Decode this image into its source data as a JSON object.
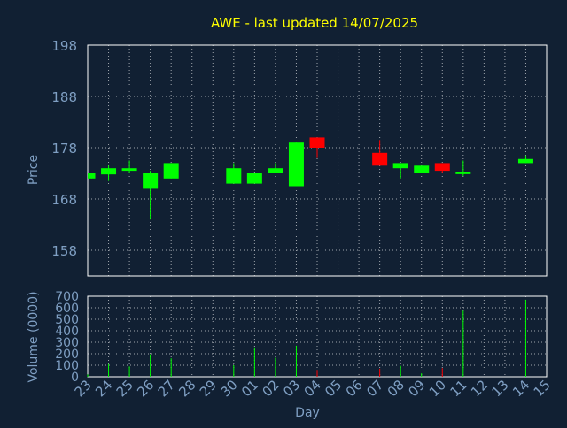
{
  "colors": {
    "background": "#112033",
    "text": "#7f9fc3",
    "title": "#ffff00",
    "frame": "#ffffff",
    "grid": "#ffffff",
    "up": "#00ff00",
    "down": "#ff0000"
  },
  "chart_data": [
    {
      "type": "candlestick",
      "title": "AWE - last updated 14/07/2025",
      "ylabel": "Price",
      "xlabel": "",
      "ylim": [
        153,
        198
      ],
      "yticks": [
        198,
        188,
        178,
        168,
        158
      ],
      "grid": true,
      "categories": [
        "23",
        "24",
        "25",
        "26",
        "27",
        "28",
        "29",
        "30",
        "01",
        "02",
        "03",
        "04",
        "05",
        "06",
        "07",
        "08",
        "09",
        "10",
        "11",
        "12",
        "13",
        "14",
        "15"
      ],
      "candles": [
        {
          "x": "23",
          "open": 172.0,
          "high": 173.0,
          "low": 172.0,
          "close": 173.0
        },
        {
          "x": "24",
          "open": 172.8,
          "high": 174.5,
          "low": 171.5,
          "close": 174.0
        },
        {
          "x": "25",
          "open": 173.5,
          "high": 175.5,
          "low": 173.0,
          "close": 174.0
        },
        {
          "x": "26",
          "open": 170.0,
          "high": 173.5,
          "low": 164.0,
          "close": 173.0
        },
        {
          "x": "27",
          "open": 172.0,
          "high": 175.0,
          "low": 172.0,
          "close": 175.0
        },
        {
          "x": "30",
          "open": 171.0,
          "high": 175.0,
          "low": 171.0,
          "close": 174.0
        },
        {
          "x": "01",
          "open": 171.0,
          "high": 173.0,
          "low": 171.0,
          "close": 173.0
        },
        {
          "x": "02",
          "open": 173.0,
          "high": 175.0,
          "low": 173.0,
          "close": 174.0
        },
        {
          "x": "03",
          "open": 170.5,
          "high": 179.0,
          "low": 170.5,
          "close": 179.0
        },
        {
          "x": "04",
          "open": 180.0,
          "high": 180.0,
          "low": 176.0,
          "close": 178.0
        },
        {
          "x": "07",
          "open": 177.0,
          "high": 179.5,
          "low": 174.5,
          "close": 174.5
        },
        {
          "x": "08",
          "open": 174.0,
          "high": 175.0,
          "low": 172.0,
          "close": 175.0
        },
        {
          "x": "09",
          "open": 173.0,
          "high": 174.5,
          "low": 173.0,
          "close": 174.5
        },
        {
          "x": "10",
          "open": 175.0,
          "high": 175.0,
          "low": 173.0,
          "close": 173.5
        },
        {
          "x": "11",
          "open": 173.0,
          "high": 175.5,
          "low": 172.5,
          "close": 173.2
        },
        {
          "x": "14",
          "open": 175.0,
          "high": 176.5,
          "low": 175.0,
          "close": 175.8
        }
      ]
    },
    {
      "type": "bar",
      "ylabel": "Volume (0000)",
      "xlabel": "Day",
      "ylim": [
        0,
        700
      ],
      "yticks": [
        700,
        600,
        500,
        400,
        300,
        200,
        100,
        0
      ],
      "grid": true,
      "categories": [
        "23",
        "24",
        "25",
        "26",
        "27",
        "28",
        "29",
        "30",
        "01",
        "02",
        "03",
        "04",
        "05",
        "06",
        "07",
        "08",
        "09",
        "10",
        "11",
        "12",
        "13",
        "14",
        "15"
      ],
      "bars": [
        {
          "x": "23",
          "value": 20,
          "direction": "up"
        },
        {
          "x": "24",
          "value": 110,
          "direction": "up"
        },
        {
          "x": "25",
          "value": 90,
          "direction": "up"
        },
        {
          "x": "26",
          "value": 195,
          "direction": "up"
        },
        {
          "x": "27",
          "value": 160,
          "direction": "up"
        },
        {
          "x": "30",
          "value": 100,
          "direction": "up"
        },
        {
          "x": "01",
          "value": 255,
          "direction": "up"
        },
        {
          "x": "02",
          "value": 165,
          "direction": "up"
        },
        {
          "x": "03",
          "value": 270,
          "direction": "up"
        },
        {
          "x": "04",
          "value": 60,
          "direction": "down"
        },
        {
          "x": "07",
          "value": 70,
          "direction": "down"
        },
        {
          "x": "08",
          "value": 95,
          "direction": "up"
        },
        {
          "x": "09",
          "value": 30,
          "direction": "up"
        },
        {
          "x": "10",
          "value": 75,
          "direction": "down"
        },
        {
          "x": "11",
          "value": 575,
          "direction": "up"
        },
        {
          "x": "14",
          "value": 670,
          "direction": "up"
        }
      ]
    }
  ]
}
